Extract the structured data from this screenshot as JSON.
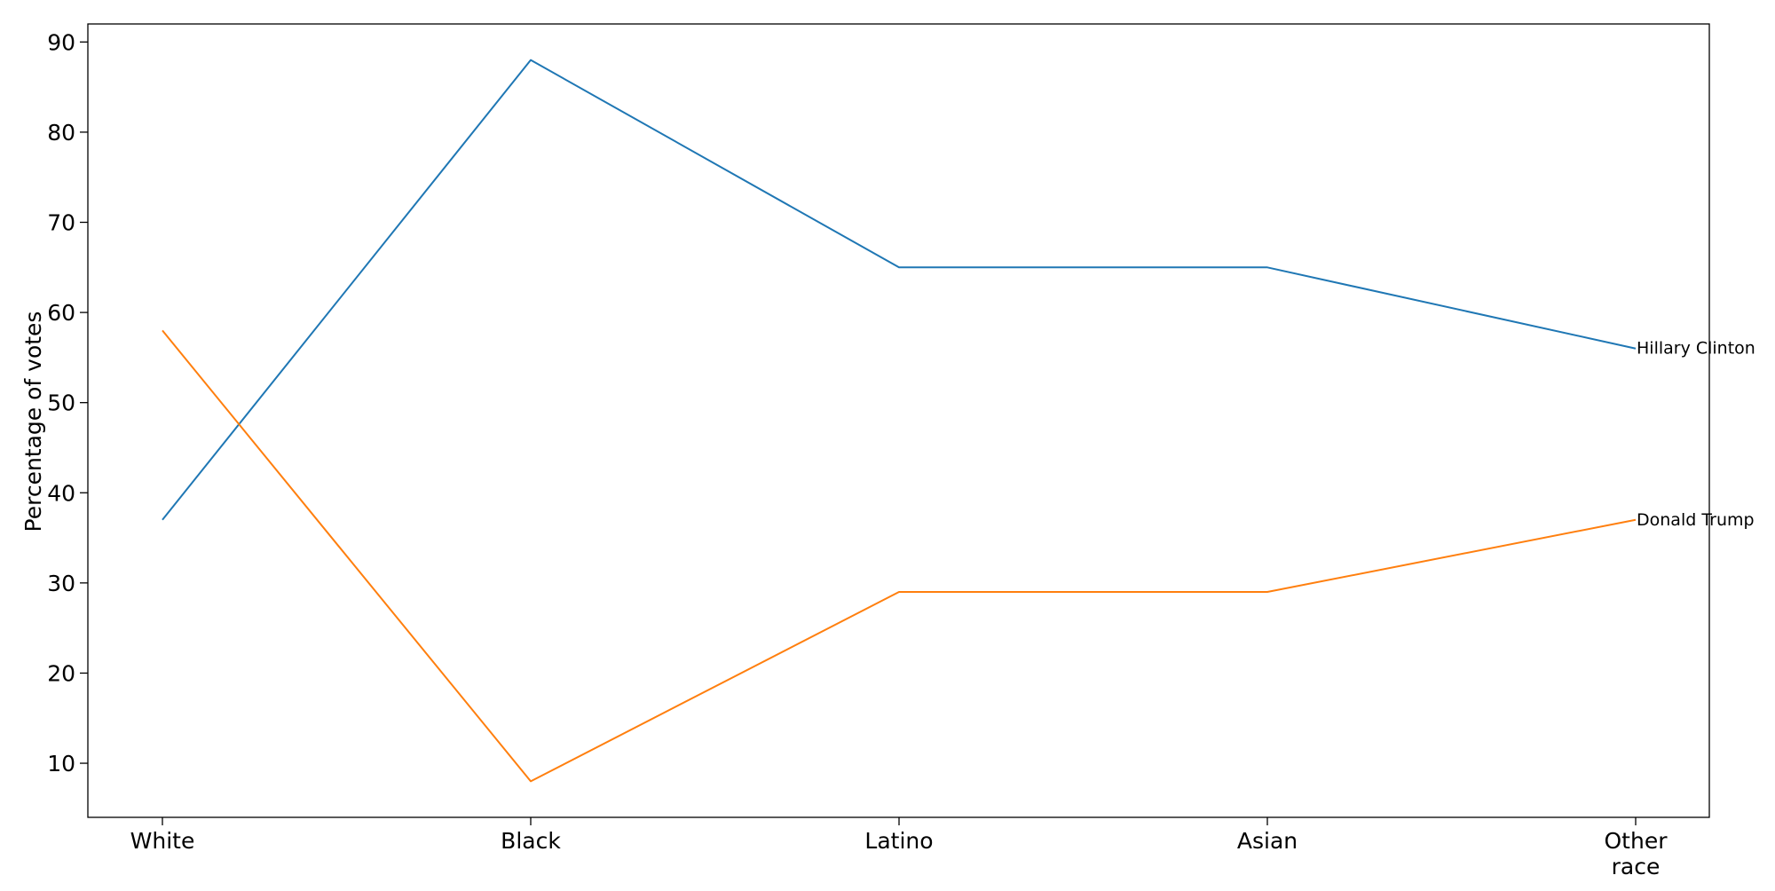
{
  "chart_data": {
    "type": "line",
    "title": "",
    "xlabel": "",
    "ylabel": "Percentage of votes",
    "categories": [
      "White",
      "Black",
      "Latino",
      "Asian",
      "Other\nrace"
    ],
    "ylim": [
      4,
      92
    ],
    "yticks": [
      10,
      20,
      30,
      40,
      50,
      60,
      70,
      80,
      90
    ],
    "grid": false,
    "legend": "none",
    "series": [
      {
        "name": "Hillary Clinton",
        "values": [
          37,
          88,
          65,
          65,
          56
        ],
        "color": "#1f77b4"
      },
      {
        "name": "Donald Trump",
        "values": [
          58,
          8,
          29,
          29,
          37
        ],
        "color": "#ff7f0e"
      }
    ]
  }
}
